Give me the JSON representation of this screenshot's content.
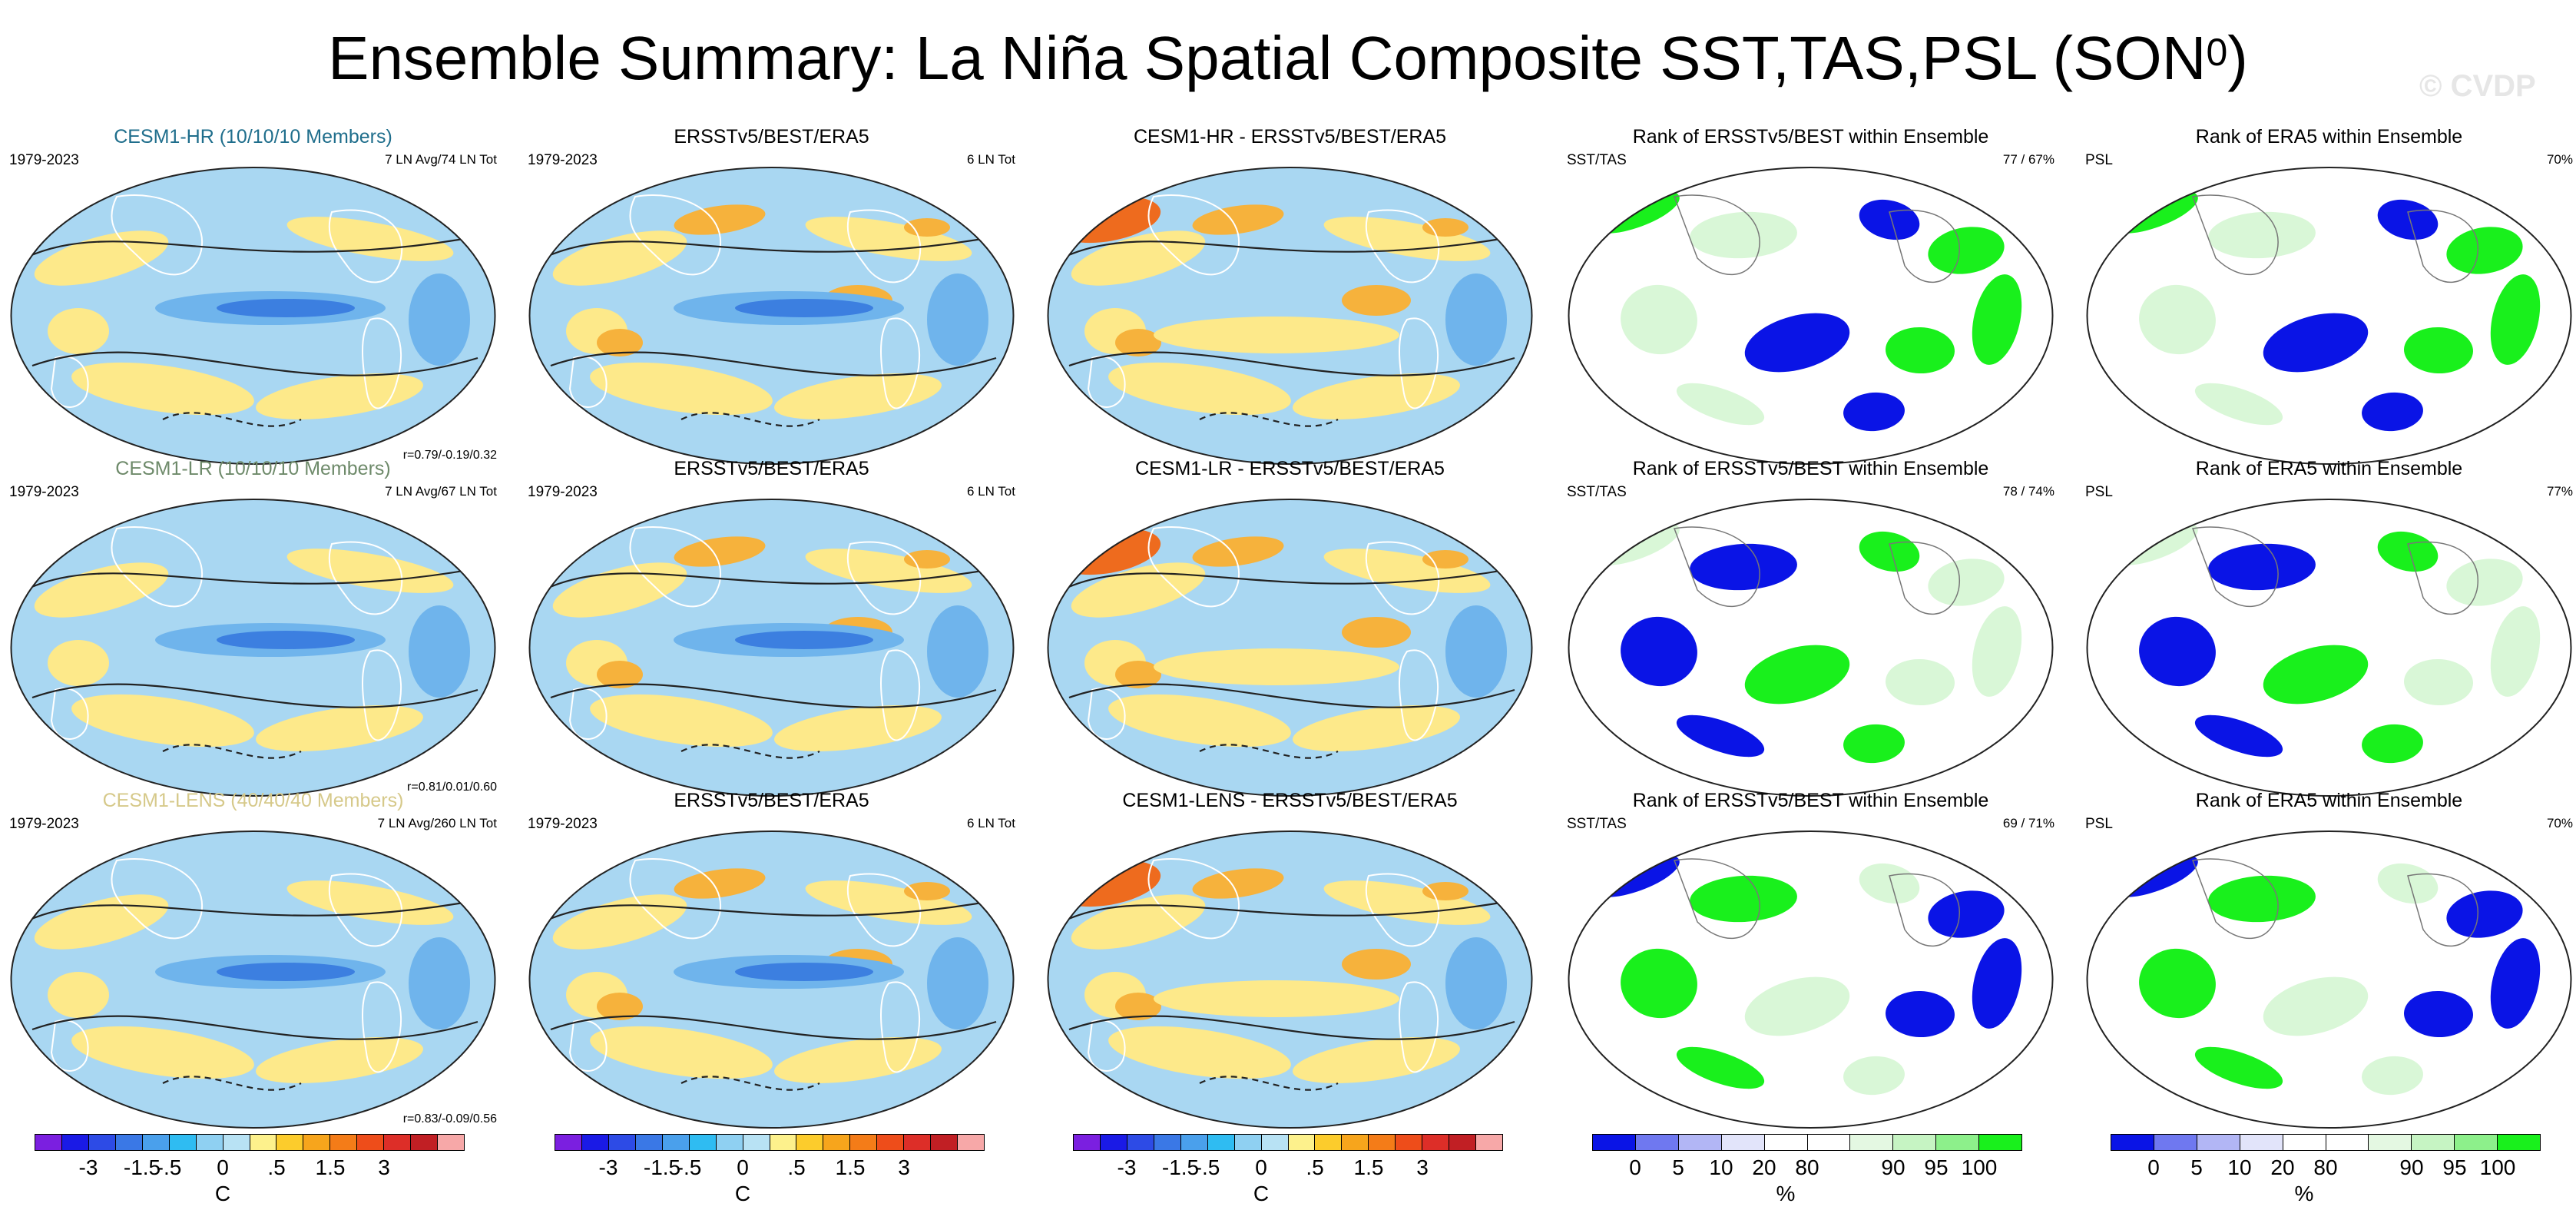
{
  "title_main": "Ensemble Summary: La Niña Spatial Composite SST,TAS,PSL (SON",
  "title_sup": "0",
  "title_close": ")",
  "watermark": "© CVDP",
  "colors": {
    "model_hr": "#1f6e8c",
    "model_lr": "#6e8a6a",
    "model_lens": "#d6c98a",
    "ocean_base": "#a9d7f2",
    "cool_mid": "#6fb4ec",
    "cool_strong": "#3c7fe0",
    "warm_light": "#fde98a",
    "warm_mid": "#f6b23c",
    "warm_strong": "#ee6b1e",
    "rank_blue": "#0a14e6",
    "rank_green": "#19f01c",
    "rank_lightgreen": "#d9f7d7"
  },
  "rows": [
    {
      "model": {
        "title": "CESM1-HR (10/10/10 Members)",
        "left": "1979-2023",
        "right": "7 LN Avg/74 LN Tot",
        "bottom": "r=0.79/-0.19/0.32"
      },
      "obs": {
        "title": "ERSSTv5/BEST/ERA5",
        "left": "1979-2023",
        "right": "6 LN Tot"
      },
      "diff": {
        "title": "CESM1-HR - ERSSTv5/BEST/ERA5"
      },
      "rank1": {
        "title": "Rank of ERSSTv5/BEST within Ensemble",
        "left": "SST/TAS",
        "right": "77 /  67%"
      },
      "rank2": {
        "title": "Rank of ERA5 within Ensemble",
        "left": "PSL",
        "right": "70%"
      }
    },
    {
      "model": {
        "title": "CESM1-LR (10/10/10 Members)",
        "left": "1979-2023",
        "right": "7 LN Avg/67 LN Tot",
        "bottom": "r=0.81/0.01/0.60"
      },
      "obs": {
        "title": "ERSSTv5/BEST/ERA5",
        "left": "1979-2023",
        "right": "6 LN Tot"
      },
      "diff": {
        "title": "CESM1-LR - ERSSTv5/BEST/ERA5"
      },
      "rank1": {
        "title": "Rank of ERSSTv5/BEST within Ensemble",
        "left": "SST/TAS",
        "right": "78 /  74%"
      },
      "rank2": {
        "title": "Rank of ERA5 within Ensemble",
        "left": "PSL",
        "right": "77%"
      }
    },
    {
      "model": {
        "title": "CESM1-LENS (40/40/40 Members)",
        "left": "1979-2023",
        "right": "7 LN Avg/260 LN Tot",
        "bottom": "r=0.83/-0.09/0.56"
      },
      "obs": {
        "title": "ERSSTv5/BEST/ERA5",
        "left": "1979-2023",
        "right": "6 LN Tot"
      },
      "diff": {
        "title": "CESM1-LENS - ERSSTv5/BEST/ERA5"
      },
      "rank1": {
        "title": "Rank of ERSSTv5/BEST within Ensemble",
        "left": "SST/TAS",
        "right": "69 /  71%"
      },
      "rank2": {
        "title": "Rank of ERA5 within Ensemble",
        "left": "PSL",
        "right": "70%"
      }
    }
  ],
  "chart_data": [
    {
      "type": "heatmap",
      "name": "temperature_colorbar",
      "unit": "C",
      "tick_labels": [
        "-3",
        "-1.5",
        "-.5",
        "0",
        ".5",
        "1.5",
        "3"
      ],
      "levels": [
        -4,
        -3,
        -2,
        -1.5,
        -1,
        -0.5,
        -0.25,
        0,
        0.25,
        0.5,
        1,
        1.5,
        2,
        3,
        4
      ],
      "colors": [
        "#7b1fe0",
        "#1a1ae6",
        "#2d4be6",
        "#3a78e6",
        "#4aa0ec",
        "#2fbcf2",
        "#8fd0f2",
        "#b8e2f4",
        "#fdf18c",
        "#fccc2c",
        "#f7a51c",
        "#f47c18",
        "#ee4d1a",
        "#dd2e28",
        "#c11f24",
        "#f7a8a8"
      ]
    },
    {
      "type": "heatmap",
      "name": "rank_colorbar",
      "unit": "%",
      "tick_labels": [
        "0",
        "5",
        "10",
        "20",
        "80",
        "90",
        "95",
        "100"
      ],
      "levels": [
        0,
        5,
        10,
        20,
        80,
        90,
        95,
        100
      ],
      "colors": [
        "#0a14e6",
        "#6f78f0",
        "#b2b6f5",
        "#e2e4fa",
        "#ffffff",
        "#ffffff",
        "#e4f8e2",
        "#c6f4c3",
        "#8df08b",
        "#19f01c"
      ]
    }
  ]
}
